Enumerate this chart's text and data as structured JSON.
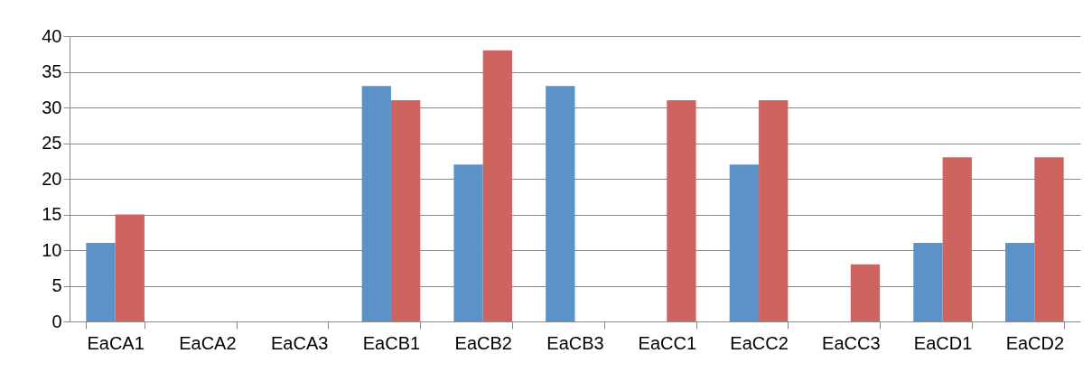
{
  "chart_data": {
    "type": "bar",
    "categories": [
      "EaCA1",
      "EaCA2",
      "EaCA3",
      "EaCB1",
      "EaCB2",
      "EaCB3",
      "EaCC1",
      "EaCC2",
      "EaCC3",
      "EaCD1",
      "EaCD2"
    ],
    "series": [
      {
        "color": "#5b93c9",
        "values": [
          11,
          0,
          0,
          33,
          22,
          33,
          0,
          22,
          0,
          11,
          11
        ]
      },
      {
        "color": "#cd6460",
        "values": [
          15,
          0,
          0,
          31,
          38,
          0,
          31,
          31,
          8,
          23,
          23
        ]
      }
    ],
    "ylim": [
      0,
      40
    ],
    "yticks": [
      0,
      5,
      10,
      15,
      20,
      25,
      30,
      35,
      40
    ],
    "grid": "y"
  }
}
